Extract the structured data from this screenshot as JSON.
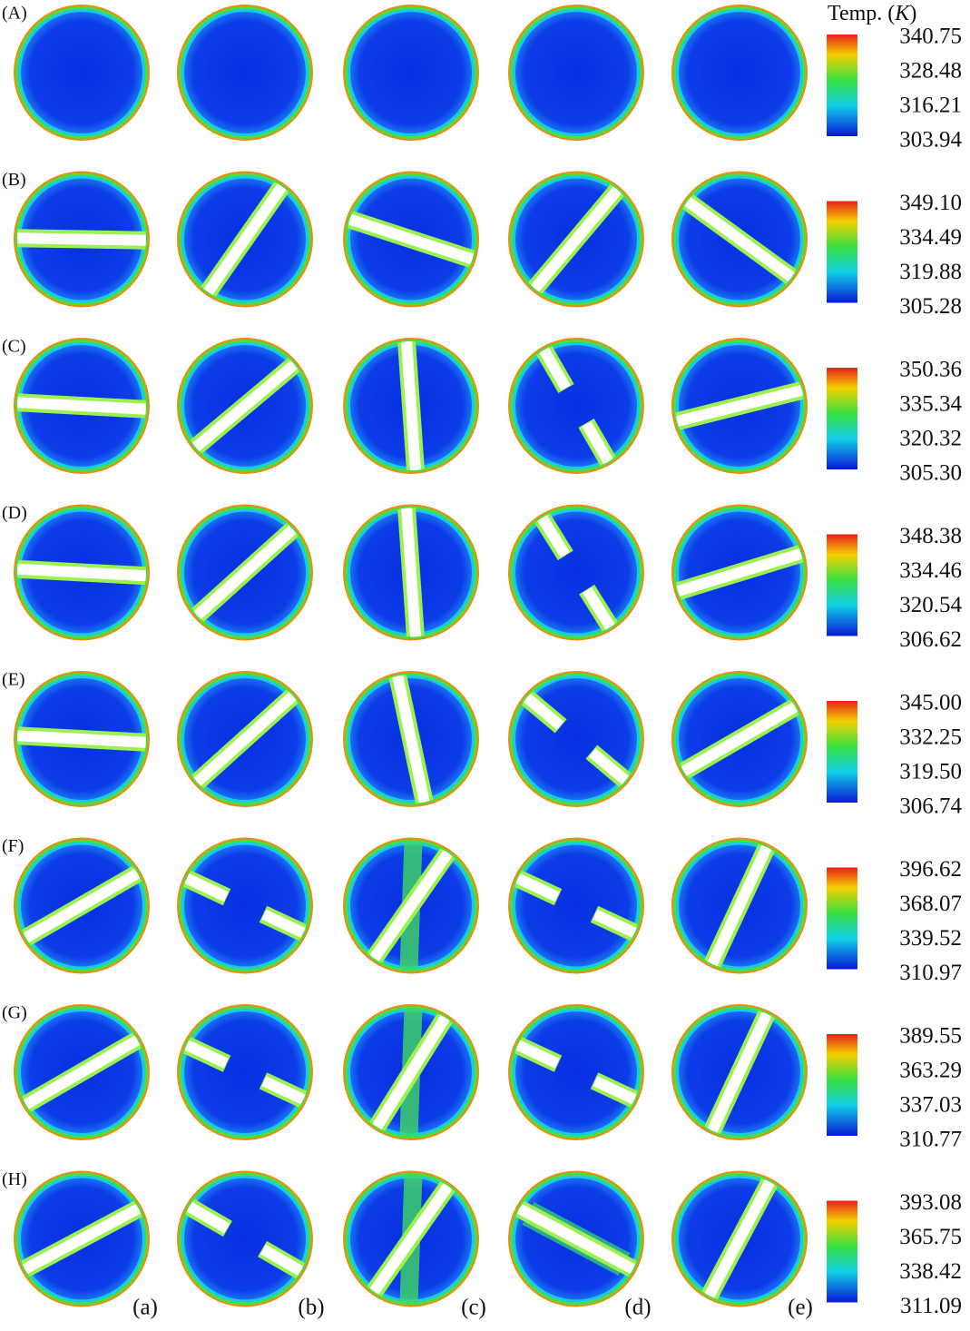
{
  "legend_title": {
    "prefix": "Temp. (",
    "unit": "K",
    "suffix": ")"
  },
  "rows": [
    {
      "label": "(A)",
      "scale": [
        "340.75",
        "328.48",
        "316.21",
        "303.94"
      ]
    },
    {
      "label": "(B)",
      "scale": [
        "349.10",
        "334.49",
        "319.88",
        "305.28"
      ]
    },
    {
      "label": "(C)",
      "scale": [
        "350.36",
        "335.34",
        "320.32",
        "305.30"
      ]
    },
    {
      "label": "(D)",
      "scale": [
        "348.38",
        "334.46",
        "320.54",
        "306.62"
      ]
    },
    {
      "label": "(E)",
      "scale": [
        "345.00",
        "332.25",
        "319.50",
        "306.74"
      ]
    },
    {
      "label": "(F)",
      "scale": [
        "396.62",
        "368.07",
        "339.52",
        "310.97"
      ]
    },
    {
      "label": "(G)",
      "scale": [
        "389.55",
        "363.29",
        "337.03",
        "310.77"
      ]
    },
    {
      "label": "(H)",
      "scale": [
        "393.08",
        "365.75",
        "338.42",
        "311.09"
      ]
    }
  ],
  "columns": [
    "(a)",
    "(b)",
    "(c)",
    "(d)",
    "(e)"
  ]
}
